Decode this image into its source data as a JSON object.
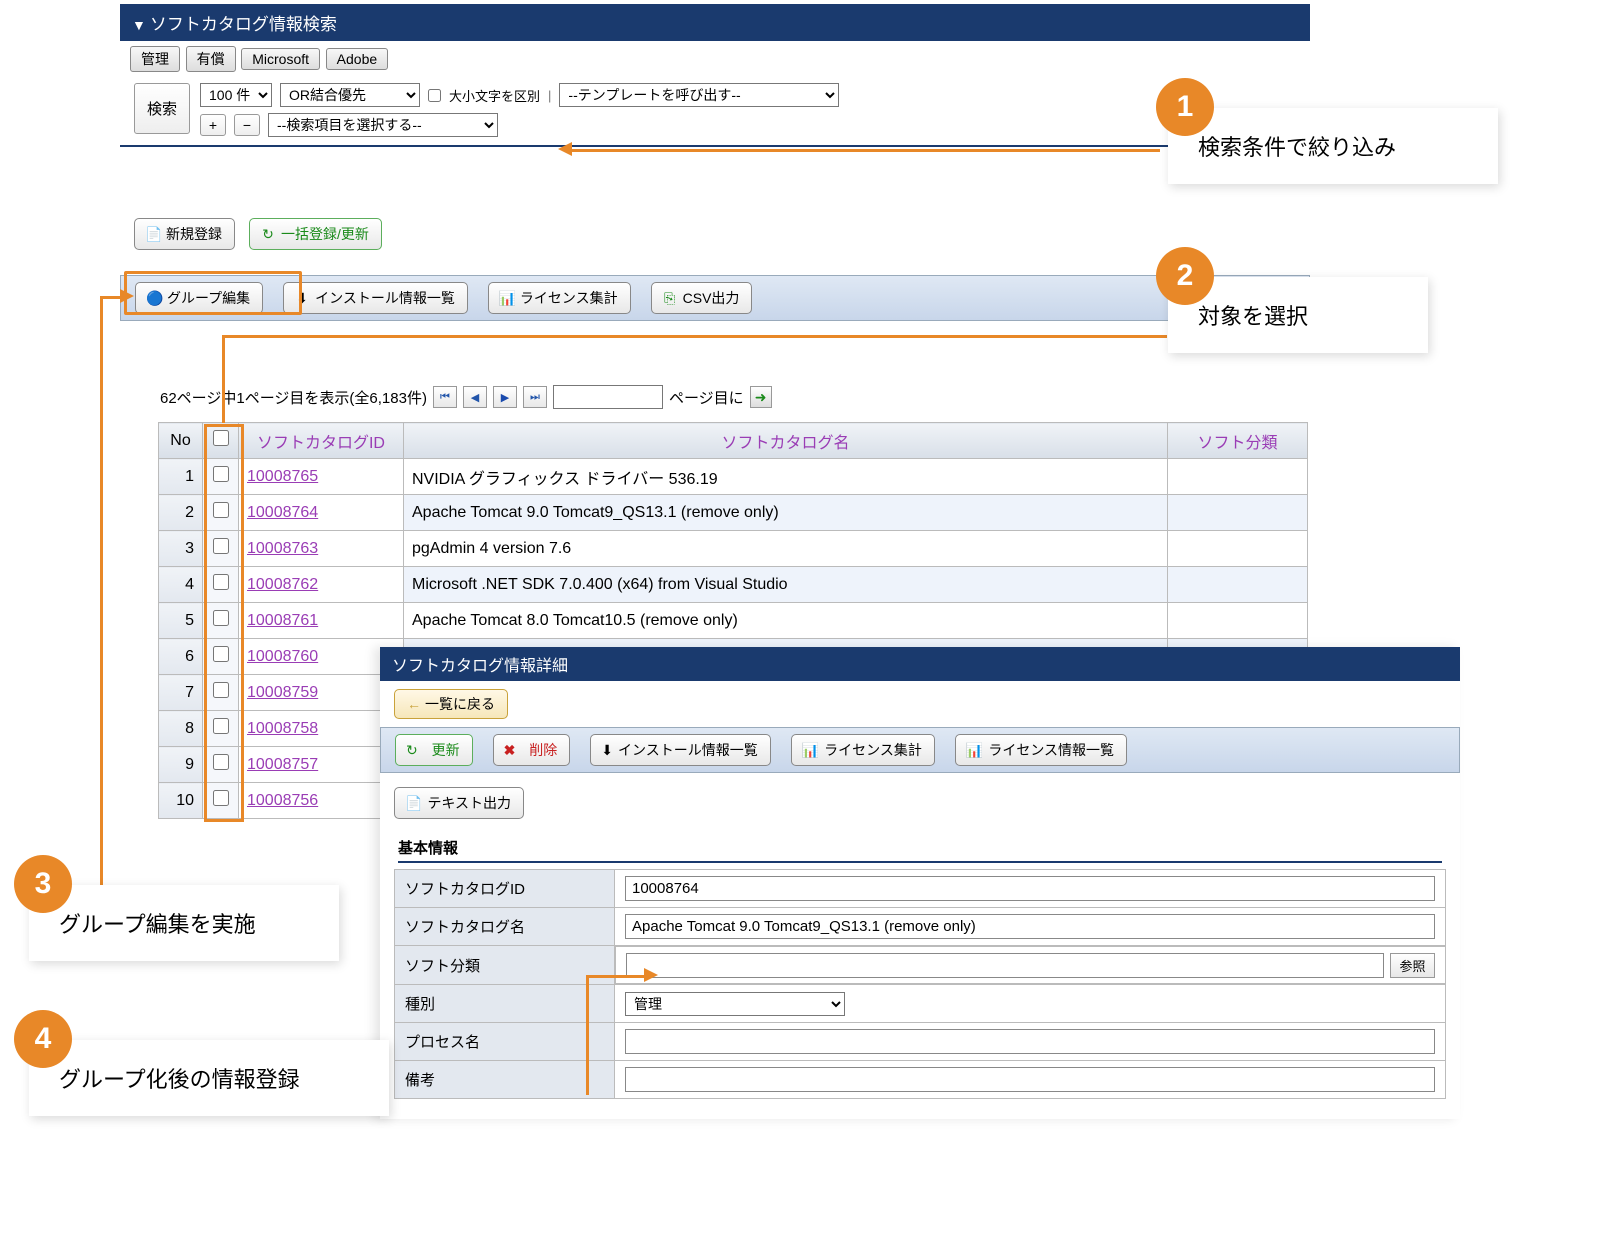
{
  "search_panel": {
    "title": "ソフトカタログ情報検索",
    "tabs": [
      "管理",
      "有償",
      "Microsoft",
      "Adobe"
    ],
    "search_btn": "検索",
    "per_page": "100 件",
    "join_mode": "OR結合優先",
    "case_label": "大小文字を区別",
    "template_select": "--テンプレートを呼び出す--",
    "field_select": "--検索項目を選択する--"
  },
  "actions1": {
    "new": "新規登録",
    "batch": "一括登録/更新"
  },
  "toolbar2": {
    "group_edit": "グループ編集",
    "install_list": "インストール情報一覧",
    "license_sum": "ライセンス集計",
    "csv": "CSV出力"
  },
  "pager": {
    "summary": "62ページ中1ページ目を表示(全6,183件)",
    "page_label": "ページ目に"
  },
  "table": {
    "headers": {
      "no": "No",
      "id": "ソフトカタログID",
      "name": "ソフトカタログ名",
      "cat": "ソフト分類"
    },
    "rows": [
      {
        "no": 1,
        "id": "10008765",
        "name": "NVIDIA グラフィックス ドライバー 536.19"
      },
      {
        "no": 2,
        "id": "10008764",
        "name": "Apache Tomcat 9.0 Tomcat9_QS13.1 (remove only)"
      },
      {
        "no": 3,
        "id": "10008763",
        "name": "pgAdmin 4 version 7.6"
      },
      {
        "no": 4,
        "id": "10008762",
        "name": "Microsoft .NET SDK 7.0.400 (x64) from Visual Studio"
      },
      {
        "no": 5,
        "id": "10008761",
        "name": "Apache Tomcat 8.0 Tomcat10.5 (remove only)"
      },
      {
        "no": 6,
        "id": "10008760",
        "name": ""
      },
      {
        "no": 7,
        "id": "10008759",
        "name": ""
      },
      {
        "no": 8,
        "id": "10008758",
        "name": ""
      },
      {
        "no": 9,
        "id": "10008757",
        "name": ""
      },
      {
        "no": 10,
        "id": "10008756",
        "name": ""
      }
    ]
  },
  "detail": {
    "title": "ソフトカタログ情報詳細",
    "back": "一覧に戻る",
    "update": "更新",
    "delete": "削除",
    "install_list": "インストール情報一覧",
    "license_sum": "ライセンス集計",
    "license_list": "ライセンス情報一覧",
    "text_out": "テキスト出力",
    "section": "基本情報",
    "fields": {
      "id_label": "ソフトカタログID",
      "id_val": "10008764",
      "name_label": "ソフトカタログ名",
      "name_val": "Apache Tomcat 9.0 Tomcat9_QS13.1 (remove only)",
      "cat_label": "ソフト分類",
      "cat_val": "",
      "type_label": "種別",
      "type_val": "管理",
      "proc_label": "プロセス名",
      "proc_val": "",
      "note_label": "備考",
      "note_val": "",
      "ref": "参照"
    }
  },
  "callouts": {
    "c1": "検索条件で絞り込み",
    "c2": "対象を選択",
    "c3": "グループ編集を実施",
    "c4": "グループ化後の情報登録"
  }
}
